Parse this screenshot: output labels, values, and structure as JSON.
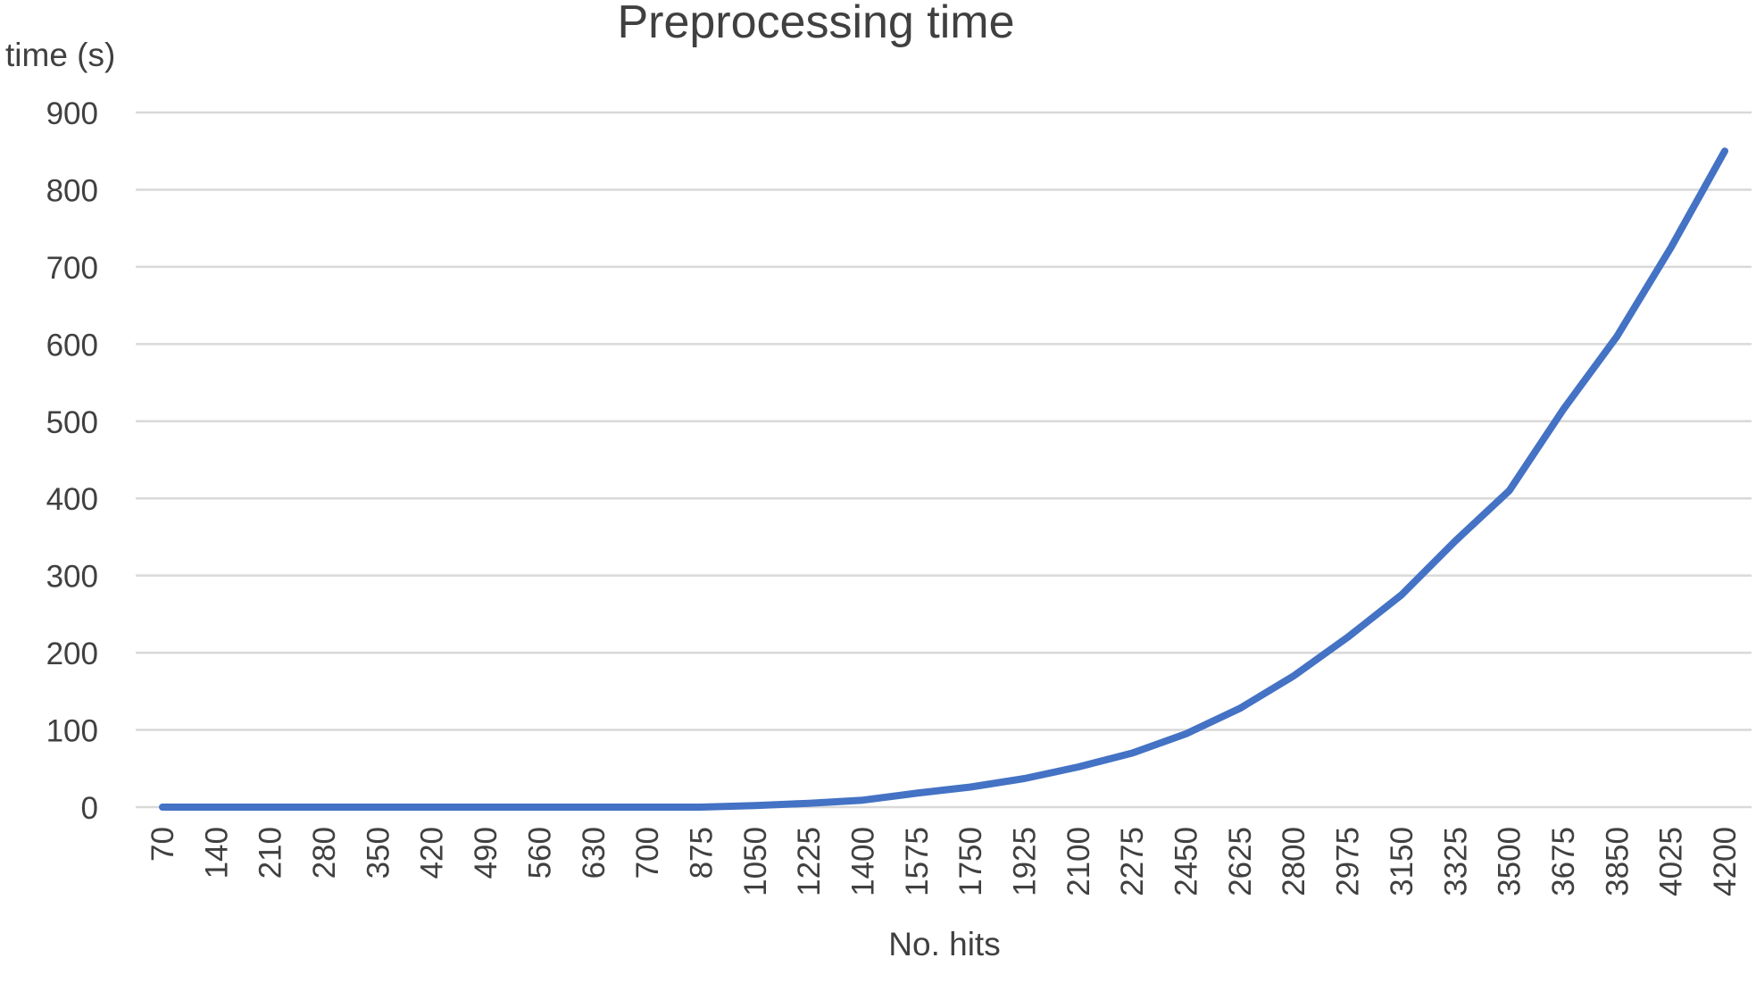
{
  "chart_data": {
    "type": "line",
    "title": "Preprocessing time",
    "xlabel": "No. hits",
    "ylabel": "time (s)",
    "ylim": [
      0,
      900
    ],
    "yticks": [
      0,
      100,
      200,
      300,
      400,
      500,
      600,
      700,
      800,
      900
    ],
    "grid": true,
    "categories": [
      "70",
      "140",
      "210",
      "280",
      "350",
      "420",
      "490",
      "560",
      "630",
      "700",
      "875",
      "1050",
      "1225",
      "1400",
      "1575",
      "1750",
      "1925",
      "2100",
      "2275",
      "2450",
      "2625",
      "2800",
      "2975",
      "3150",
      "3325",
      "3500",
      "3675",
      "3850",
      "4025",
      "4200"
    ],
    "series": [
      {
        "color": "#4472c4",
        "values": [
          0,
          0,
          0,
          0,
          0,
          0,
          0,
          0,
          0,
          0,
          0,
          2,
          5,
          9,
          18,
          26,
          37,
          52,
          70,
          95,
          128,
          170,
          220,
          275,
          345,
          410,
          515,
          610,
          725,
          850
        ]
      }
    ]
  }
}
